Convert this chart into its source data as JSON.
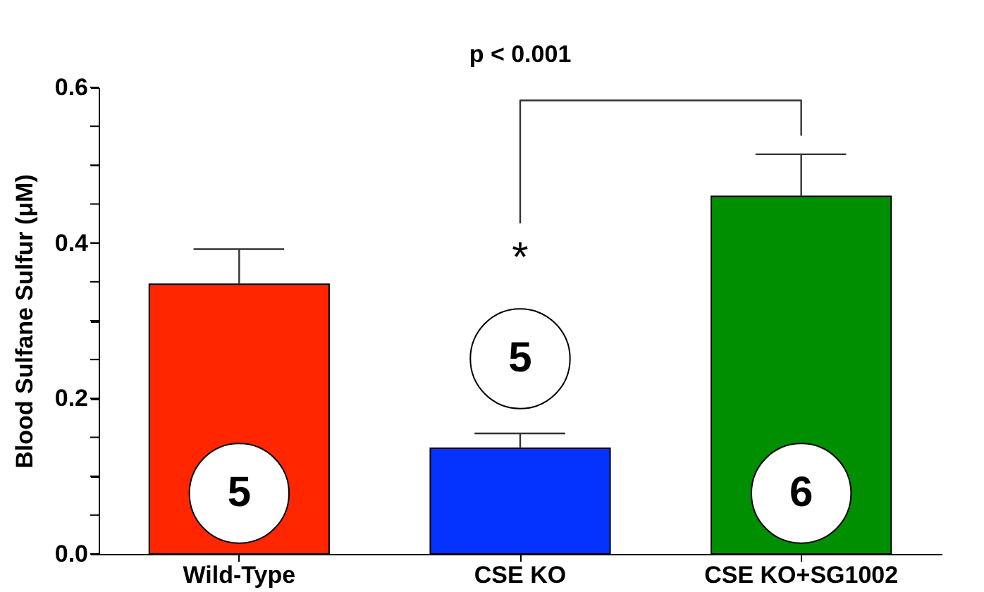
{
  "chart_data": {
    "type": "bar",
    "ylabel": "Blood Sulfane Sulfur (μM)",
    "categories": [
      "Wild-Type",
      "CSE KO",
      "CSE KO+SG1002"
    ],
    "values": [
      0.347,
      0.136,
      0.46
    ],
    "colors": [
      "#ff2600",
      "#0433ff",
      "#008f00"
    ],
    "errors": [
      [
        0.347,
        0.392
      ],
      [
        0.136,
        0.155
      ],
      [
        0.46,
        0.514
      ]
    ],
    "ylim": [
      0,
      0.6
    ],
    "yticks": [
      {
        "value": 0,
        "label": "0.0"
      },
      {
        "value": 0.05,
        "label": null
      },
      {
        "value": 0.1,
        "label": null
      },
      {
        "value": 0.15,
        "label": null
      },
      {
        "value": 0.2,
        "label": "0.2"
      },
      {
        "value": 0.25,
        "label": null
      },
      {
        "value": 0.3,
        "label": null
      },
      {
        "value": 0.35,
        "label": null
      },
      {
        "value": 0.4,
        "label": "0.4"
      },
      {
        "value": 0.45,
        "label": null
      },
      {
        "value": 0.5,
        "label": null
      },
      {
        "value": 0.55,
        "label": null
      },
      {
        "value": 0.6,
        "label": "0.6"
      }
    ],
    "grid": false,
    "annotations": [
      "5",
      "5",
      "6",
      "*",
      "p < 0.001"
    ]
  }
}
